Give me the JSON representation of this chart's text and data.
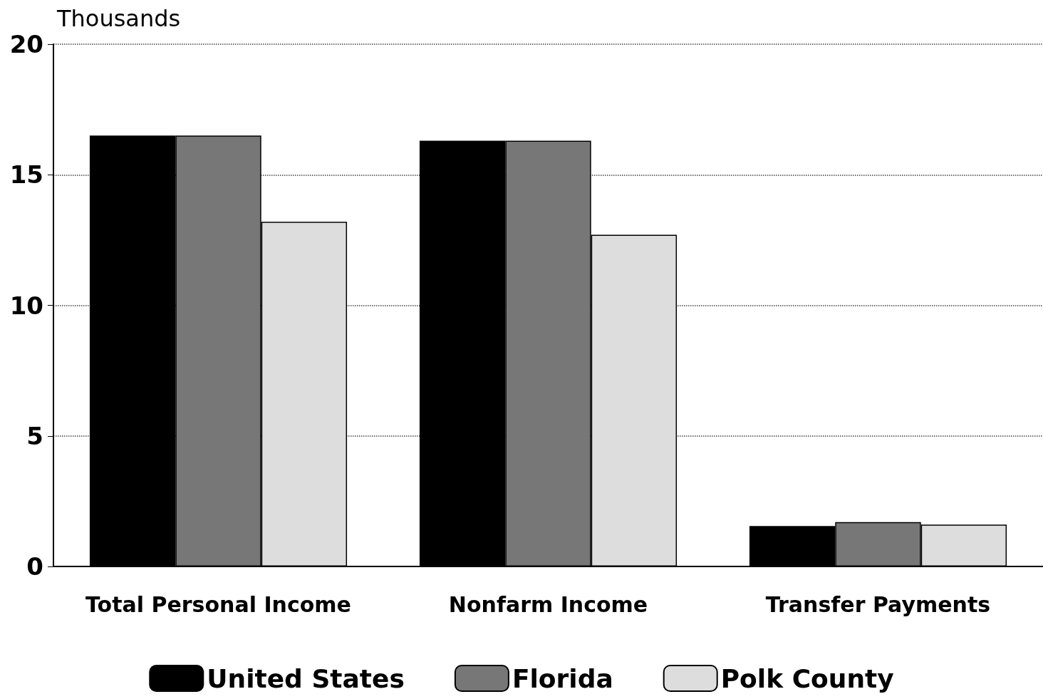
{
  "chart_data": {
    "type": "bar",
    "ylabel": "Thousands",
    "categories": [
      "Total Personal Income",
      "Nonfarm Income",
      "Transfer Payments"
    ],
    "series": [
      {
        "name": "United States",
        "color": "#000000",
        "values": [
          16.5,
          16.3,
          1.55
        ]
      },
      {
        "name": "Florida",
        "color": "#777777",
        "values": [
          16.5,
          16.3,
          1.7
        ]
      },
      {
        "name": "Polk County",
        "color": "#dddddd",
        "values": [
          13.2,
          12.7,
          1.6
        ]
      }
    ],
    "ylim": [
      0,
      20
    ],
    "yticks": [
      0,
      5,
      10,
      15,
      20
    ],
    "grid": "y",
    "legend": "bottom"
  }
}
